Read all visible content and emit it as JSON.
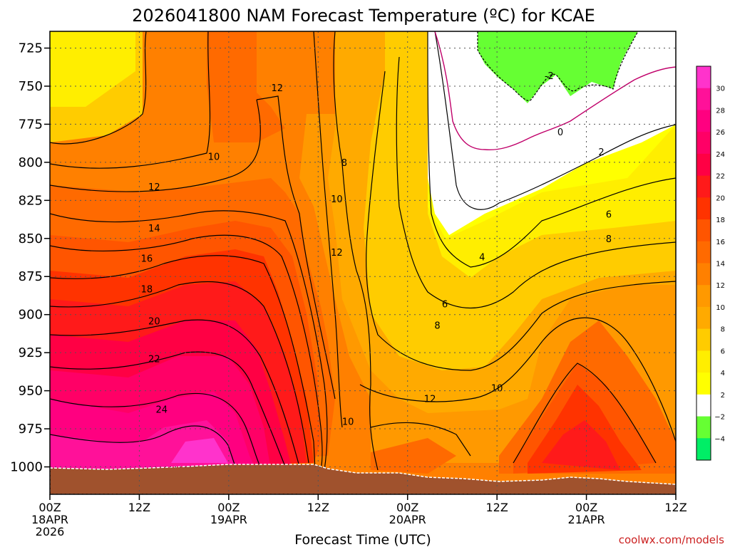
{
  "chart_data": {
    "type": "heatmap",
    "title": "2026041800 NAM Forecast Temperature (ºC) for KCAE",
    "xlabel": "Forecast Time (UTC)",
    "ylabel": "",
    "credit": "coolwx.com/models",
    "y_ticks": [
      "725",
      "750",
      "775",
      "800",
      "825",
      "850",
      "875",
      "900",
      "925",
      "950",
      "975",
      "1000"
    ],
    "y_tick_values": [
      725,
      750,
      775,
      800,
      825,
      850,
      875,
      900,
      925,
      950,
      975,
      1000
    ],
    "ylim": [
      714,
      1018
    ],
    "x_ticks": [
      {
        "line1": "00Z",
        "line2": "18APR",
        "line3": "2026"
      },
      {
        "line1": "12Z",
        "line2": "",
        "line3": ""
      },
      {
        "line1": "00Z",
        "line2": "19APR",
        "line3": ""
      },
      {
        "line1": "12Z",
        "line2": "",
        "line3": ""
      },
      {
        "line1": "00Z",
        "line2": "20APR",
        "line3": ""
      },
      {
        "line1": "12Z",
        "line2": "",
        "line3": ""
      },
      {
        "line1": "00Z",
        "line2": "21APR",
        "line3": ""
      },
      {
        "line1": "12Z",
        "line2": "",
        "line3": ""
      }
    ],
    "x_tick_hours": [
      0,
      12,
      24,
      36,
      48,
      60,
      72,
      84
    ],
    "xlim": [
      0,
      84
    ],
    "colorbar": {
      "labels": [
        "30",
        "28",
        "26",
        "24",
        "22",
        "20",
        "18",
        "16",
        "14",
        "12",
        "10",
        "8",
        "6",
        "4",
        "2",
        "−2",
        "−4"
      ],
      "levels": [
        30,
        28,
        26,
        24,
        22,
        20,
        18,
        16,
        14,
        12,
        10,
        8,
        6,
        4,
        2,
        -2,
        -4
      ],
      "colors": [
        "#ff33cc",
        "#ff1199",
        "#ff0080",
        "#ff0066",
        "#ff0044",
        "#ff1a1a",
        "#ff3300",
        "#ff5500",
        "#ff6a00",
        "#ff8000",
        "#ff9900",
        "#ffaa00",
        "#ffcc00",
        "#ffee00",
        "#ffff00",
        "#ffffff",
        "#66ff33",
        "#00ee66"
      ]
    },
    "contour_labels": [
      {
        "text": "12",
        "h": 30.5,
        "p": 751
      },
      {
        "text": "10",
        "h": 22,
        "p": 796
      },
      {
        "text": "12",
        "h": 14,
        "p": 816
      },
      {
        "text": "14",
        "h": 14,
        "p": 843
      },
      {
        "text": "16",
        "h": 13,
        "p": 863
      },
      {
        "text": "18",
        "h": 13,
        "p": 883
      },
      {
        "text": "20",
        "h": 14,
        "p": 904
      },
      {
        "text": "22",
        "h": 14,
        "p": 929
      },
      {
        "text": "24",
        "h": 15,
        "p": 962
      },
      {
        "text": "8",
        "h": 39.5,
        "p": 800
      },
      {
        "text": "10",
        "h": 38.5,
        "p": 824
      },
      {
        "text": "12",
        "h": 38.5,
        "p": 859
      },
      {
        "text": "10",
        "h": 40,
        "p": 970
      },
      {
        "text": "-2",
        "h": 67,
        "p": 743
      },
      {
        "text": "0",
        "h": 68.5,
        "p": 780
      },
      {
        "text": "2",
        "h": 74,
        "p": 793
      },
      {
        "text": "6",
        "h": 75,
        "p": 834
      },
      {
        "text": "8",
        "h": 75,
        "p": 850
      },
      {
        "text": "4",
        "h": 58,
        "p": 862
      },
      {
        "text": "6",
        "h": 53,
        "p": 893
      },
      {
        "text": "8",
        "h": 52,
        "p": 907
      },
      {
        "text": "10",
        "h": 60,
        "p": 948
      },
      {
        "text": "12",
        "h": 51,
        "p": 955
      }
    ]
  }
}
